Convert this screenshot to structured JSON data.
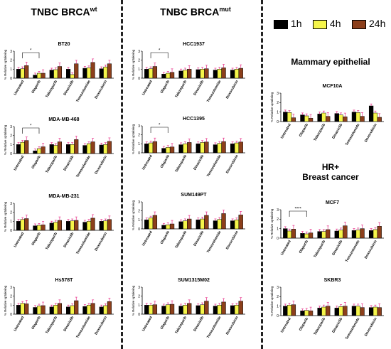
{
  "headers": {
    "wt": {
      "main": "TNBC BRCA",
      "sup": "wt"
    },
    "mut": {
      "main": "TNBC BRCA",
      "sup": "mut"
    },
    "mammary": "Mammary epithelial",
    "hr": [
      "HR+",
      "Breast cancer"
    ]
  },
  "legend": [
    {
      "label": "1h",
      "color": "#000000"
    },
    {
      "label": "4h",
      "color": "#f5f54a"
    },
    {
      "label": "24h",
      "color": "#8c3f1b"
    }
  ],
  "colors": {
    "t1h": "#000000",
    "t4h": "#f5f54a",
    "t24h": "#8c3f1b",
    "err": "#e8338a"
  },
  "chart_data": [
    {
      "id": "BT20",
      "type": "bar",
      "title": "BT20",
      "ylabel": "% Relative uptakeing",
      "categories": [
        "Untreated",
        "Olaparib",
        "Talazoparib",
        "Dinaciclib",
        "Temozolomide",
        "Doxorubicin"
      ],
      "ylim": [
        0,
        3
      ],
      "yticks": [
        0,
        1,
        2,
        3
      ],
      "series": [
        {
          "name": "1h",
          "values": [
            1.0,
            0.35,
            0.9,
            1.0,
            1.1,
            1.05
          ]
        },
        {
          "name": "4h",
          "values": [
            1.05,
            0.55,
            0.95,
            0.4,
            1.15,
            1.25
          ]
        },
        {
          "name": "24h",
          "values": [
            1.4,
            0.55,
            1.3,
            1.6,
            1.75,
            1.6
          ]
        }
      ],
      "sig": [
        {
          "from": 0,
          "to": 1,
          "label": "*"
        }
      ]
    },
    {
      "id": "MDA-MB-468",
      "type": "bar",
      "title": "MDA-MB-468",
      "ylabel": "% Relative uptakeing",
      "categories": [
        "Untreated",
        "Olaparib",
        "Talazoparib",
        "Dinaciclib",
        "Temozolomide",
        "Doxorubicin"
      ],
      "ylim": [
        0,
        3
      ],
      "yticks": [
        0,
        1,
        2,
        3
      ],
      "series": [
        {
          "name": "1h",
          "values": [
            1.0,
            0.3,
            1.0,
            1.0,
            0.9,
            0.95
          ]
        },
        {
          "name": "4h",
          "values": [
            1.25,
            0.55,
            0.9,
            1.0,
            1.1,
            1.0
          ]
        },
        {
          "name": "24h",
          "values": [
            1.45,
            0.75,
            1.3,
            1.55,
            1.3,
            1.35
          ]
        }
      ],
      "sig": [
        {
          "from": 0,
          "to": 1,
          "label": "*"
        }
      ]
    },
    {
      "id": "MDA-MB-231",
      "type": "bar",
      "title": "MDA-MB-231",
      "ylabel": "% Relative uptakeing",
      "categories": [
        "Untreated",
        "Olaparib",
        "Talazoparib",
        "Dinaciclib",
        "Temozolomide",
        "Doxorubicin"
      ],
      "ylim": [
        0,
        3
      ],
      "yticks": [
        0,
        1,
        2,
        3
      ],
      "series": [
        {
          "name": "1h",
          "values": [
            1.0,
            0.5,
            0.8,
            1.0,
            0.9,
            1.0
          ]
        },
        {
          "name": "4h",
          "values": [
            1.2,
            0.55,
            0.9,
            1.05,
            1.0,
            1.05
          ]
        },
        {
          "name": "24h",
          "values": [
            1.3,
            0.6,
            1.1,
            1.1,
            1.35,
            1.2
          ]
        }
      ],
      "sig": []
    },
    {
      "id": "Hs578T",
      "type": "bar",
      "title": "Hs578T",
      "ylabel": "% Relative uptakeing",
      "categories": [
        "Untreated",
        "Olaparib",
        "Talazoparib",
        "Dinaciclib",
        "Temozolomide",
        "Doxorubicin"
      ],
      "ylim": [
        0,
        3
      ],
      "yticks": [
        0,
        1,
        2,
        3
      ],
      "series": [
        {
          "name": "1h",
          "values": [
            1.0,
            0.75,
            0.8,
            0.8,
            0.85,
            0.8
          ]
        },
        {
          "name": "4h",
          "values": [
            1.2,
            0.9,
            1.0,
            0.95,
            1.0,
            0.95
          ]
        },
        {
          "name": "24h",
          "values": [
            1.15,
            0.95,
            1.2,
            1.5,
            1.2,
            1.4
          ]
        }
      ],
      "sig": []
    },
    {
      "id": "HCC1937",
      "type": "bar",
      "title": "HCC1937",
      "ylabel": "% Relative uptakeing",
      "categories": [
        "Untreated",
        "Olaparib",
        "Talazoparib",
        "Dinaciclib",
        "Temozolomide",
        "Doxorubicin"
      ],
      "ylim": [
        0,
        3
      ],
      "yticks": [
        0,
        1,
        2,
        3
      ],
      "series": [
        {
          "name": "1h",
          "values": [
            1.0,
            0.45,
            0.8,
            0.95,
            0.9,
            0.9
          ]
        },
        {
          "name": "4h",
          "values": [
            1.05,
            0.55,
            0.9,
            1.0,
            1.0,
            1.0
          ]
        },
        {
          "name": "24h",
          "values": [
            1.3,
            0.65,
            1.0,
            1.05,
            1.15,
            1.1
          ]
        }
      ],
      "sig": [
        {
          "from": 0,
          "to": 1,
          "label": "*"
        }
      ]
    },
    {
      "id": "HCC1395",
      "type": "bar",
      "title": "HCC1395",
      "ylabel": "% Relative uptakeing",
      "categories": [
        "Untreated",
        "Olaparib",
        "Talazoparib",
        "Dinaciclib",
        "Temozolomide",
        "Doxorubicin"
      ],
      "ylim": [
        0,
        3
      ],
      "yticks": [
        0,
        1,
        2,
        3
      ],
      "series": [
        {
          "name": "1h",
          "values": [
            1.0,
            0.5,
            0.9,
            1.0,
            0.9,
            1.0
          ]
        },
        {
          "name": "4h",
          "values": [
            1.1,
            0.6,
            1.0,
            1.15,
            1.05,
            1.1
          ]
        },
        {
          "name": "24h",
          "values": [
            1.25,
            0.65,
            1.15,
            1.2,
            1.25,
            1.2
          ]
        }
      ],
      "sig": [
        {
          "from": 0,
          "to": 1,
          "label": "*"
        }
      ]
    },
    {
      "id": "SUM149PT",
      "type": "bar",
      "title": "SUM149PT",
      "ylabel": "% Relative uptakeing",
      "categories": [
        "Untreated",
        "Olaparib",
        "Talazoparib",
        "Dinaciclib",
        "Temozolomide",
        "Doxorubicin"
      ],
      "ylim": [
        0,
        3
      ],
      "yticks": [
        0,
        1,
        2,
        3
      ],
      "series": [
        {
          "name": "1h",
          "values": [
            1.0,
            0.4,
            0.8,
            1.0,
            0.9,
            0.9
          ]
        },
        {
          "name": "4h",
          "values": [
            1.2,
            0.45,
            0.9,
            1.1,
            1.05,
            1.0
          ]
        },
        {
          "name": "24h",
          "values": [
            1.5,
            0.55,
            1.1,
            1.5,
            1.7,
            1.55
          ]
        }
      ],
      "sig": []
    },
    {
      "id": "SUM1315M02",
      "type": "bar",
      "title": "SUM1315M02",
      "ylabel": "% Relative uptakeing",
      "categories": [
        "Untreated",
        "Olaparib",
        "Talazoparib",
        "Dinaciclib",
        "Temozolomide",
        "Doxorubicin"
      ],
      "ylim": [
        0,
        3
      ],
      "yticks": [
        0,
        1,
        2,
        3
      ],
      "series": [
        {
          "name": "1h",
          "values": [
            1.0,
            0.9,
            0.9,
            0.95,
            0.9,
            0.95
          ]
        },
        {
          "name": "4h",
          "values": [
            1.0,
            1.05,
            1.0,
            1.05,
            1.0,
            1.0
          ]
        },
        {
          "name": "24h",
          "values": [
            1.05,
            1.1,
            1.2,
            1.45,
            1.35,
            1.45
          ]
        }
      ],
      "sig": []
    },
    {
      "id": "MCF10A",
      "type": "bar",
      "title": "MCF10A",
      "ylabel": "% Relative uptakeing",
      "categories": [
        "Untreated",
        "Olaparib",
        "Talazoparib",
        "Dinaciclib",
        "Temozolomide",
        "Doxorubicin"
      ],
      "ylim": [
        0,
        3
      ],
      "yticks": [
        0,
        1,
        2,
        3
      ],
      "series": [
        {
          "name": "1h",
          "values": [
            1.0,
            0.7,
            0.8,
            0.85,
            1.0,
            1.65
          ]
        },
        {
          "name": "4h",
          "values": [
            0.95,
            0.6,
            0.9,
            0.7,
            0.95,
            0.9
          ]
        },
        {
          "name": "24h",
          "values": [
            0.4,
            0.35,
            0.55,
            0.5,
            0.55,
            0.45
          ]
        }
      ],
      "sig": []
    },
    {
      "id": "MCF7",
      "type": "bar",
      "title": "MCF7",
      "ylabel": "% Relative uptakeing",
      "categories": [
        "Untreated",
        "Olaparib",
        "Talazoparib",
        "Dinaciclib",
        "Temozolomide",
        "Doxorubicin"
      ],
      "ylim": [
        0,
        3
      ],
      "yticks": [
        0,
        1,
        2,
        3
      ],
      "series": [
        {
          "name": "1h",
          "values": [
            1.0,
            0.5,
            0.7,
            0.75,
            0.8,
            0.8
          ]
        },
        {
          "name": "4h",
          "values": [
            0.75,
            0.45,
            0.7,
            0.85,
            0.85,
            0.9
          ]
        },
        {
          "name": "24h",
          "values": [
            0.95,
            0.55,
            0.9,
            1.3,
            1.0,
            1.25
          ]
        }
      ],
      "sig": [
        {
          "from": 0,
          "to": 1,
          "label": "****"
        }
      ]
    },
    {
      "id": "SKBR3",
      "type": "bar",
      "title": "SKBR3",
      "ylabel": "% Relative uptakeing",
      "categories": [
        "Untreated",
        "Olaparib",
        "Talazoparib",
        "Dinaciclib",
        "Temozolomide",
        "Doxorubicin"
      ],
      "ylim": [
        0,
        3
      ],
      "yticks": [
        0,
        1,
        2,
        3
      ],
      "series": [
        {
          "name": "1h",
          "values": [
            1.0,
            0.5,
            0.8,
            0.8,
            1.0,
            0.85
          ]
        },
        {
          "name": "4h",
          "values": [
            1.1,
            0.55,
            0.9,
            0.95,
            1.0,
            0.9
          ]
        },
        {
          "name": "24h",
          "values": [
            1.15,
            0.5,
            1.0,
            1.0,
            0.85,
            0.85
          ]
        }
      ],
      "sig": []
    }
  ]
}
